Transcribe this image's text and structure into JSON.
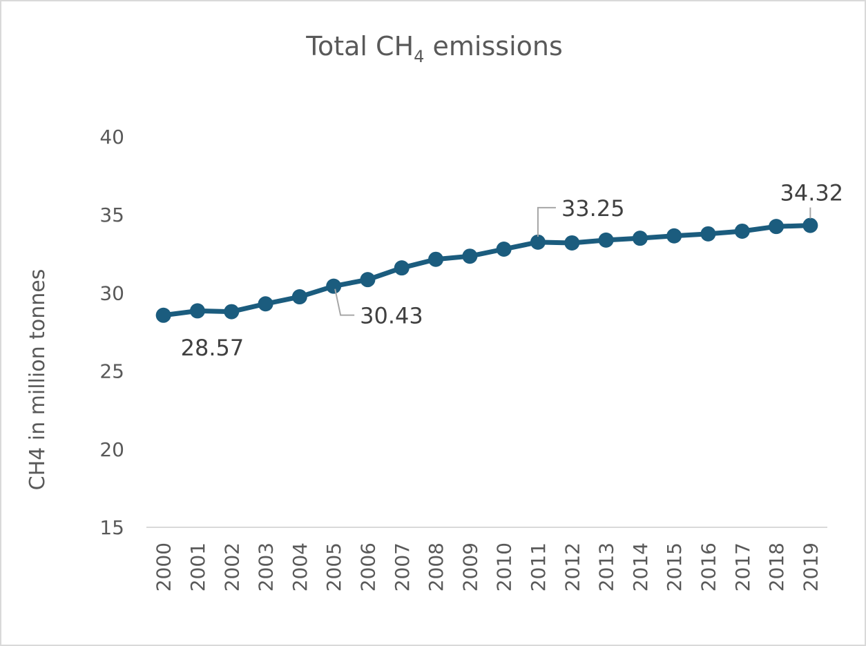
{
  "chart_data": {
    "type": "line",
    "title": {
      "prefix": "Total CH",
      "subscript": "4",
      "suffix": " emissions"
    },
    "xlabel": "",
    "ylabel": "CH4 in million tonnes",
    "ylim": [
      15,
      40
    ],
    "yticks": [
      "15",
      "20",
      "25",
      "30",
      "35",
      "40"
    ],
    "grid": false,
    "categories": [
      "2000",
      "2001",
      "2002",
      "2003",
      "2004",
      "2005",
      "2006",
      "2007",
      "2008",
      "2009",
      "2010",
      "2011",
      "2012",
      "2013",
      "2014",
      "2015",
      "2016",
      "2017",
      "2018",
      "2019"
    ],
    "series": [
      {
        "color": "#1b5c7e",
        "values": [
          28.57,
          28.85,
          28.8,
          29.3,
          29.75,
          30.43,
          30.85,
          31.6,
          32.15,
          32.35,
          32.8,
          33.25,
          33.2,
          33.38,
          33.5,
          33.65,
          33.78,
          33.95,
          34.25,
          34.32
        ]
      }
    ],
    "data_labels": [
      {
        "index": 0,
        "text": "28.57"
      },
      {
        "index": 5,
        "text": "30.43"
      },
      {
        "index": 11,
        "text": "33.25"
      },
      {
        "index": 19,
        "text": "34.32"
      }
    ]
  }
}
